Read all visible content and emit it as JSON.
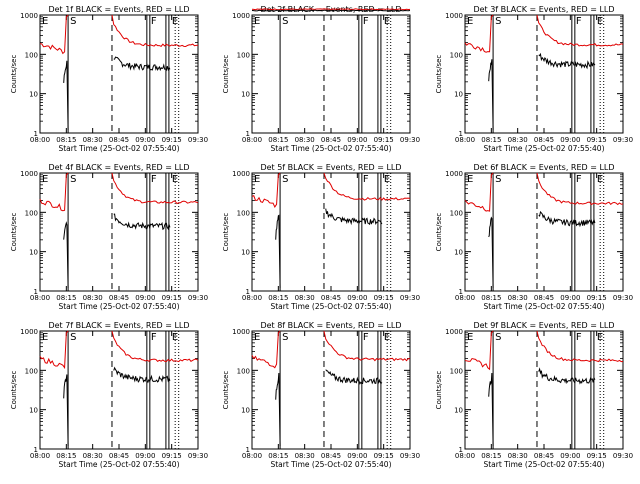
{
  "chart_data": [
    {
      "type": "line",
      "title": "Det 1f BLACK = Events, RED = LLD",
      "xlabel": "Start Time (25-Oct-02 07:55:40)",
      "ylabel": "Counts/sec",
      "xlim": [
        "08:00",
        "09:30"
      ],
      "ylim": [
        1,
        1000
      ],
      "yscale": "log",
      "xticks": [
        "08:00",
        "08:15",
        "08:30",
        "08:45",
        "09:00",
        "09:15",
        "09:30"
      ],
      "yticks": [
        "1",
        "10",
        "100",
        "1000"
      ],
      "markers": [
        {
          "label": "E",
          "time": "08:00"
        },
        {
          "label": "S",
          "time": "08:16"
        },
        {
          "label": "F",
          "time": "09:02"
        },
        {
          "label": "E",
          "time": "09:14"
        }
      ],
      "red_level": 170,
      "black_level": 48
    },
    {
      "type": "line",
      "title": "Det 2f BLACK = Events, RED = LLD",
      "xlabel": "Start Time (25-Oct-02 07:55:40)",
      "ylabel": "Counts/sec",
      "xlim": [
        "08:00",
        "09:30"
      ],
      "ylim": [
        1,
        1000
      ],
      "yscale": "log",
      "xticks": [
        "08:00",
        "08:15",
        "08:30",
        "08:45",
        "09:00",
        "09:15",
        "09:30"
      ],
      "yticks": [
        "1",
        "10",
        "100",
        "1000"
      ],
      "markers": [
        {
          "label": "E",
          "time": "08:00"
        },
        {
          "label": "S",
          "time": "08:16"
        },
        {
          "label": "F",
          "time": "09:02"
        },
        {
          "label": "E",
          "time": "09:14"
        }
      ],
      "red_level": 1400,
      "black_level": 1300
    },
    {
      "type": "line",
      "title": "Det 3f BLACK = Events, RED = LLD",
      "xlabel": "Start Time (25-Oct-02 07:55:40)",
      "ylabel": "Counts/sec",
      "xlim": [
        "08:00",
        "09:30"
      ],
      "ylim": [
        1,
        1000
      ],
      "yscale": "log",
      "xticks": [
        "08:00",
        "08:15",
        "08:30",
        "08:45",
        "09:00",
        "09:15",
        "09:30"
      ],
      "yticks": [
        "1",
        "10",
        "100",
        "1000"
      ],
      "markers": [
        {
          "label": "E",
          "time": "08:00"
        },
        {
          "label": "S",
          "time": "08:16"
        },
        {
          "label": "F",
          "time": "09:02"
        },
        {
          "label": "E",
          "time": "09:14"
        }
      ],
      "red_level": 175,
      "black_level": 55
    },
    {
      "type": "line",
      "title": "Det 4f BLACK = Events, RED = LLD",
      "xlabel": "Start Time (25-Oct-02 07:55:40)",
      "ylabel": "Counts/sec",
      "xlim": [
        "08:00",
        "09:30"
      ],
      "ylim": [
        1,
        1000
      ],
      "yscale": "log",
      "xticks": [
        "08:00",
        "08:15",
        "08:30",
        "08:45",
        "09:00",
        "09:15",
        "09:30"
      ],
      "yticks": [
        "1",
        "10",
        "100",
        "1000"
      ],
      "markers": [
        {
          "label": "E",
          "time": "08:00"
        },
        {
          "label": "S",
          "time": "08:16"
        },
        {
          "label": "F",
          "time": "09:02"
        },
        {
          "label": "E",
          "time": "09:14"
        }
      ],
      "red_level": 180,
      "black_level": 45
    },
    {
      "type": "line",
      "title": "Det 5f BLACK = Events, RED = LLD",
      "xlabel": "Start Time (25-Oct-02 07:55:40)",
      "ylabel": "Counts/sec",
      "xlim": [
        "08:00",
        "09:30"
      ],
      "ylim": [
        1,
        1000
      ],
      "yscale": "log",
      "xticks": [
        "08:00",
        "08:15",
        "08:30",
        "08:45",
        "09:00",
        "09:15",
        "09:30"
      ],
      "yticks": [
        "1",
        "10",
        "100",
        "1000"
      ],
      "markers": [
        {
          "label": "E",
          "time": "08:00"
        },
        {
          "label": "S",
          "time": "08:16"
        },
        {
          "label": "F",
          "time": "09:02"
        },
        {
          "label": "E",
          "time": "09:14"
        }
      ],
      "red_level": 220,
      "black_level": 60
    },
    {
      "type": "line",
      "title": "Det 6f BLACK = Events, RED = LLD",
      "xlabel": "Start Time (25-Oct-02 07:55:40)",
      "ylabel": "Counts/sec",
      "xlim": [
        "08:00",
        "09:30"
      ],
      "ylim": [
        1,
        1000
      ],
      "yscale": "log",
      "xticks": [
        "08:00",
        "08:15",
        "08:30",
        "08:45",
        "09:00",
        "09:15",
        "09:30"
      ],
      "yticks": [
        "1",
        "10",
        "100",
        "1000"
      ],
      "markers": [
        {
          "label": "E",
          "time": "08:00"
        },
        {
          "label": "S",
          "time": "08:16"
        },
        {
          "label": "F",
          "time": "09:02"
        },
        {
          "label": "E",
          "time": "09:14"
        }
      ],
      "red_level": 170,
      "black_level": 55
    },
    {
      "type": "line",
      "title": "Det 7f BLACK = Events, RED = LLD",
      "xlabel": "Start Time (25-Oct-02 07:55:40)",
      "ylabel": "Counts/sec",
      "xlim": [
        "08:00",
        "09:30"
      ],
      "ylim": [
        1,
        1000
      ],
      "yscale": "log",
      "xticks": [
        "08:00",
        "08:15",
        "08:30",
        "08:45",
        "09:00",
        "09:15",
        "09:30"
      ],
      "yticks": [
        "1",
        "10",
        "100",
        "1000"
      ],
      "markers": [
        {
          "label": "E",
          "time": "08:00"
        },
        {
          "label": "S",
          "time": "08:16"
        },
        {
          "label": "F",
          "time": "09:02"
        },
        {
          "label": "E",
          "time": "09:14"
        }
      ],
      "red_level": 180,
      "black_level": 60
    },
    {
      "type": "line",
      "title": "Det 8f BLACK = Events, RED = LLD",
      "xlabel": "Start Time (25-Oct-02 07:55:40)",
      "ylabel": "Counts/sec",
      "xlim": [
        "08:00",
        "09:30"
      ],
      "ylim": [
        1,
        1000
      ],
      "yscale": "log",
      "xticks": [
        "08:00",
        "08:15",
        "08:30",
        "08:45",
        "09:00",
        "09:15",
        "09:30"
      ],
      "yticks": [
        "1",
        "10",
        "100",
        "1000"
      ],
      "markers": [
        {
          "label": "E",
          "time": "08:00"
        },
        {
          "label": "S",
          "time": "08:16"
        },
        {
          "label": "F",
          "time": "09:02"
        },
        {
          "label": "E",
          "time": "09:14"
        }
      ],
      "red_level": 190,
      "black_level": 55
    },
    {
      "type": "line",
      "title": "Det 9f BLACK = Events, RED = LLD",
      "xlabel": "Start Time (25-Oct-02 07:55:40)",
      "ylabel": "Counts/sec",
      "xlim": [
        "08:00",
        "09:30"
      ],
      "ylim": [
        1,
        1000
      ],
      "yscale": "log",
      "xticks": [
        "08:00",
        "08:15",
        "08:30",
        "08:45",
        "09:00",
        "09:15",
        "09:30"
      ],
      "yticks": [
        "1",
        "10",
        "100",
        "1000"
      ],
      "markers": [
        {
          "label": "E",
          "time": "08:00"
        },
        {
          "label": "S",
          "time": "08:16"
        },
        {
          "label": "F",
          "time": "09:02"
        },
        {
          "label": "E",
          "time": "09:14"
        }
      ],
      "red_level": 180,
      "black_level": 55
    }
  ],
  "colors": {
    "events": "#000000",
    "lld": "#e00000"
  }
}
